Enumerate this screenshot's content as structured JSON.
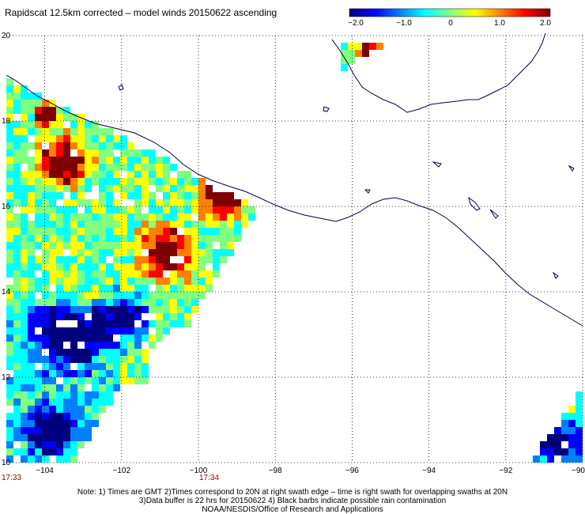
{
  "title": "Rapidscat 12.5km corrected – model winds 20150622 ascending",
  "colorbar": {
    "tick_labels": [
      "−2.0",
      "−1.0",
      "0",
      "1.0",
      "2.0"
    ],
    "tick_values": [
      -2.0,
      -1.0,
      0,
      1.0,
      2.0
    ],
    "colors": [
      "#00007f",
      "#0000ff",
      "#0080ff",
      "#00ffff",
      "#80ff80",
      "#ffff00",
      "#ff8000",
      "#ff0000",
      "#7f0000"
    ]
  },
  "map": {
    "lon_range": [
      -105,
      -90
    ],
    "lat_range": [
      10,
      20
    ],
    "lon_ticks": [
      -104,
      -102,
      -100,
      -98,
      -96,
      -94,
      -92,
      -90
    ],
    "lon_tick_labels": [
      "−104",
      "−102",
      "−100",
      "−98",
      "−96",
      "−94",
      "−92",
      "−90"
    ],
    "lat_ticks": [
      10,
      12,
      14,
      16,
      18,
      20
    ],
    "lat_tick_labels": [
      "10",
      "12",
      "14",
      "16",
      "18",
      "20"
    ],
    "coast_color": "#00004f",
    "grid": "dotted"
  },
  "pass_times": [
    "17:33",
    "17:34"
  ],
  "notes": [
    "Note: 1) Times are GMT 2)Times correspond to 20N at right swath edge – time is right swath for overlapping swaths at 20N",
    "3)Data buffer is 22 hrs for 20150622 4) Black barbs indicate possible rain contamination",
    "NOAA/NESDIS/Office of Research and Applications"
  ]
}
